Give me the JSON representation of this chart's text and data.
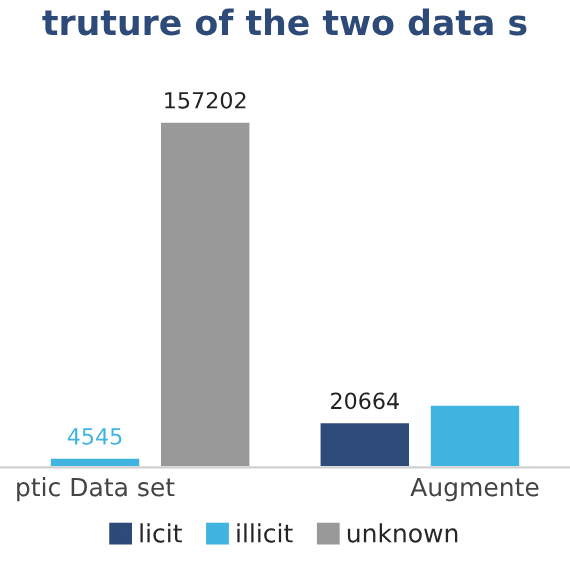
{
  "chart_data": {
    "type": "bar",
    "title": "truture of the two data s",
    "categories": [
      "ptic Data set",
      "Augmente"
    ],
    "series": [
      {
        "name": "licit",
        "color": "#2e4a78",
        "values": [
          null,
          20664
        ],
        "value_labels": [
          null,
          "20664"
        ]
      },
      {
        "name": "illicit",
        "color": "#3fb4e0",
        "values": [
          4545,
          28600
        ],
        "value_labels": [
          "4545",
          null
        ]
      },
      {
        "name": "unknown",
        "color": "#999999",
        "values": [
          157202,
          null
        ],
        "value_labels": [
          "157202",
          null
        ]
      }
    ],
    "legend": "bottom",
    "grid": false
  }
}
